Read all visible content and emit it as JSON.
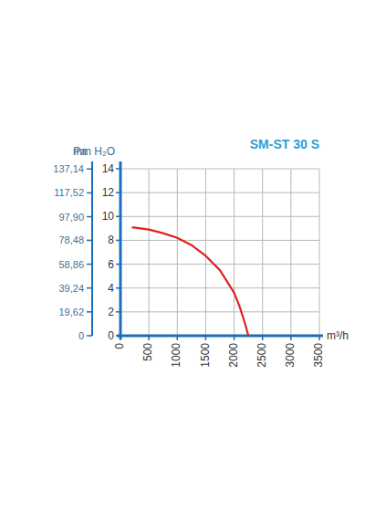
{
  "chart_data": {
    "type": "line",
    "title": "SM-ST 30 S",
    "x_label": "m³/h",
    "y_label": "mm H₂O",
    "y2_label": "Pa",
    "x": [
      200,
      500,
      750,
      1000,
      1250,
      1500,
      1750,
      2000,
      2100,
      2200,
      2250
    ],
    "values": [
      9.1,
      8.9,
      8.6,
      8.2,
      7.6,
      6.7,
      5.5,
      3.6,
      2.4,
      0.9,
      0
    ],
    "color": "#e02020",
    "xlim": [
      0,
      3500
    ],
    "xticks": [
      0,
      500,
      1000,
      1500,
      2000,
      2500,
      3000,
      3500
    ],
    "ylim": [
      0,
      14
    ],
    "yticks": [
      0,
      2,
      4,
      6,
      8,
      10,
      12,
      14
    ],
    "y2lim": [
      0,
      137.34
    ],
    "y2ticks": [
      0,
      {
        "value": 19.62,
        "label": "19,62"
      },
      {
        "value": 39.24,
        "label": "39,24"
      },
      {
        "value": 58.86,
        "label": "58,86"
      },
      {
        "value": 78.48,
        "label": "78,48"
      },
      {
        "value": 97.9,
        "label": "97,90"
      },
      {
        "value": 117.52,
        "label": "117,52"
      },
      {
        "value": 137.14,
        "label": "137,14"
      }
    ],
    "grid": true
  }
}
